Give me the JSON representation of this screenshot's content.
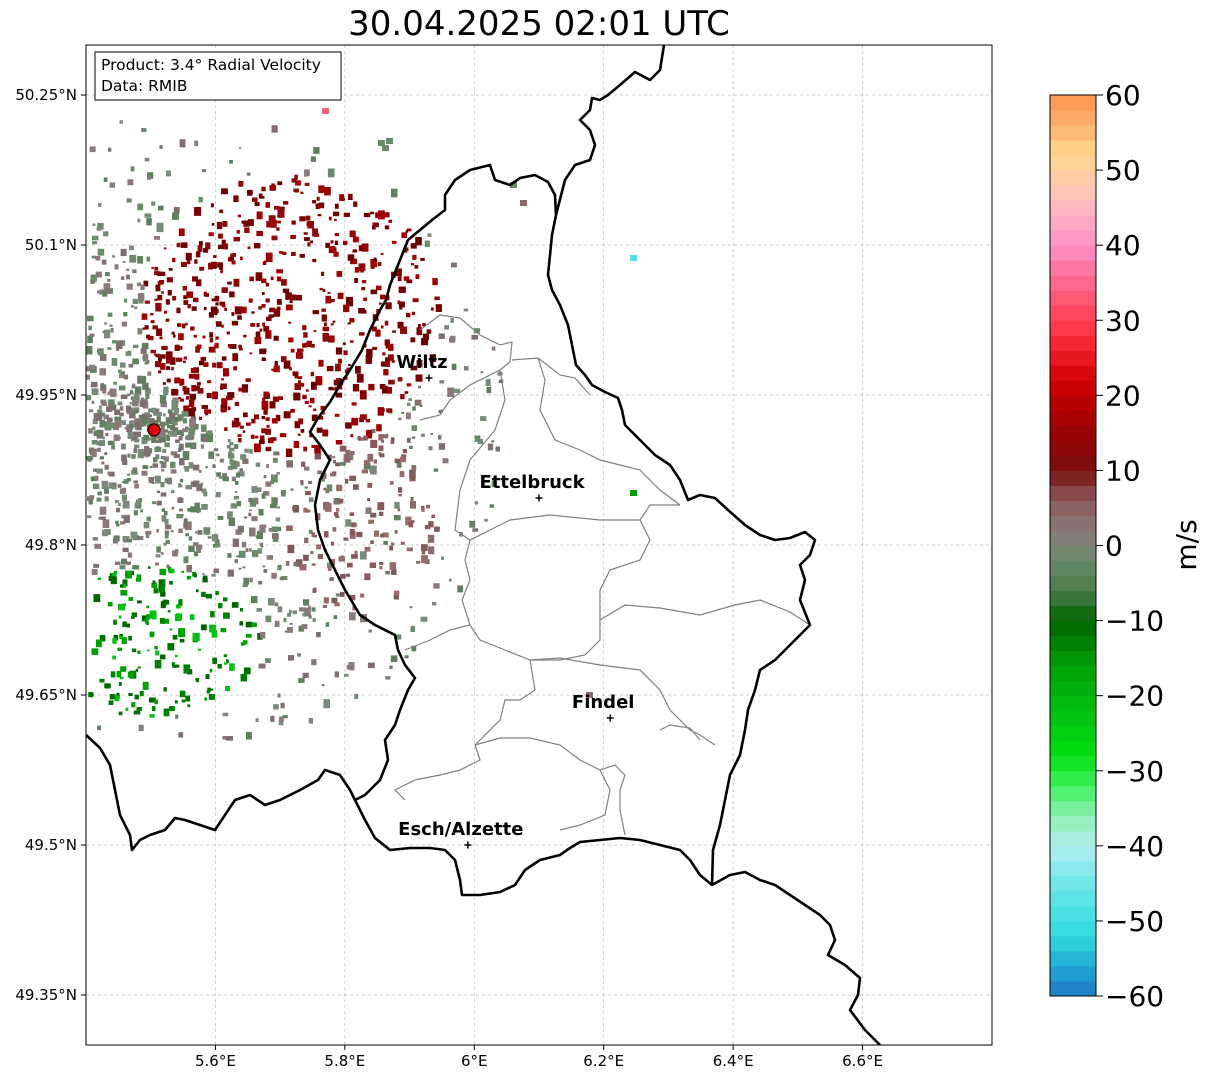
{
  "title": "30.04.2025 02:01 UTC",
  "info": {
    "product": "Product: 3.4° Radial Velocity",
    "data": "Data: RMIB"
  },
  "axes": {
    "lon_range": [
      5.4,
      6.8
    ],
    "lat_range": [
      49.3,
      50.3
    ],
    "x_ticks": [
      {
        "value": 5.6,
        "label": "5.6°E"
      },
      {
        "value": 5.8,
        "label": "5.8°E"
      },
      {
        "value": 6.0,
        "label": "6°E"
      },
      {
        "value": 6.2,
        "label": "6.2°E"
      },
      {
        "value": 6.4,
        "label": "6.4°E"
      },
      {
        "value": 6.6,
        "label": "6.6°E"
      }
    ],
    "y_ticks": [
      {
        "value": 50.25,
        "label": "50.25°N"
      },
      {
        "value": 50.1,
        "label": "50.1°N"
      },
      {
        "value": 49.95,
        "label": "49.95°N"
      },
      {
        "value": 49.8,
        "label": "49.8°N"
      },
      {
        "value": 49.65,
        "label": "49.65°N"
      },
      {
        "value": 49.5,
        "label": "49.5°N"
      },
      {
        "value": 49.35,
        "label": "49.35°N"
      }
    ],
    "grid": true
  },
  "places": [
    {
      "name": "Wiltz",
      "lon": 5.93,
      "lat": 49.967
    },
    {
      "name": "Ettelbruck",
      "lon": 6.1,
      "lat": 49.847
    },
    {
      "name": "Findel",
      "lon": 6.21,
      "lat": 49.627
    },
    {
      "name": "Esch/Alzette",
      "lon": 5.99,
      "lat": 49.5
    }
  ],
  "radar_site": {
    "lon": 5.505,
    "lat": 49.915,
    "color": "#e60000"
  },
  "colorbar": {
    "label": "m/s",
    "min": -60,
    "max": 60,
    "ticks": [
      {
        "value": 60,
        "label": "60"
      },
      {
        "value": 50,
        "label": "50"
      },
      {
        "value": 40,
        "label": "40"
      },
      {
        "value": 30,
        "label": "30"
      },
      {
        "value": 20,
        "label": "20"
      },
      {
        "value": 10,
        "label": "10"
      },
      {
        "value": 0,
        "label": "0"
      },
      {
        "value": -10,
        "label": "−10"
      },
      {
        "value": -20,
        "label": "−20"
      },
      {
        "value": -30,
        "label": "−30"
      },
      {
        "value": -40,
        "label": "−40"
      },
      {
        "value": -50,
        "label": "−50"
      },
      {
        "value": -60,
        "label": "−60"
      }
    ],
    "stops": [
      {
        "value": -60,
        "color": "#1f78c8"
      },
      {
        "value": -56,
        "color": "#22a8d2"
      },
      {
        "value": -52,
        "color": "#30dce0"
      },
      {
        "value": -46,
        "color": "#66e4e6"
      },
      {
        "value": -40,
        "color": "#b0eef0"
      },
      {
        "value": -36,
        "color": "#8ef0b0"
      },
      {
        "value": -32,
        "color": "#40f060"
      },
      {
        "value": -28,
        "color": "#00e010"
      },
      {
        "value": -22,
        "color": "#00c010"
      },
      {
        "value": -16,
        "color": "#00a008"
      },
      {
        "value": -10,
        "color": "#006400"
      },
      {
        "value": -6,
        "color": "#4a7a4a"
      },
      {
        "value": -2,
        "color": "#6a8a6a"
      },
      {
        "value": 2,
        "color": "#8a7a7a"
      },
      {
        "value": 6,
        "color": "#8a5a5a"
      },
      {
        "value": 10,
        "color": "#7a1010"
      },
      {
        "value": 16,
        "color": "#a00000"
      },
      {
        "value": 22,
        "color": "#d00000"
      },
      {
        "value": 28,
        "color": "#ff3040"
      },
      {
        "value": 34,
        "color": "#ff6080"
      },
      {
        "value": 40,
        "color": "#ff90c8"
      },
      {
        "value": 46,
        "color": "#ffc0c0"
      },
      {
        "value": 52,
        "color": "#ffd890"
      },
      {
        "value": 58,
        "color": "#ffa060"
      },
      {
        "value": 60,
        "color": "#ff9a50"
      }
    ]
  },
  "colors": {
    "border": "#000000",
    "cantons": "#808080",
    "grid": "#bbbbbb"
  }
}
